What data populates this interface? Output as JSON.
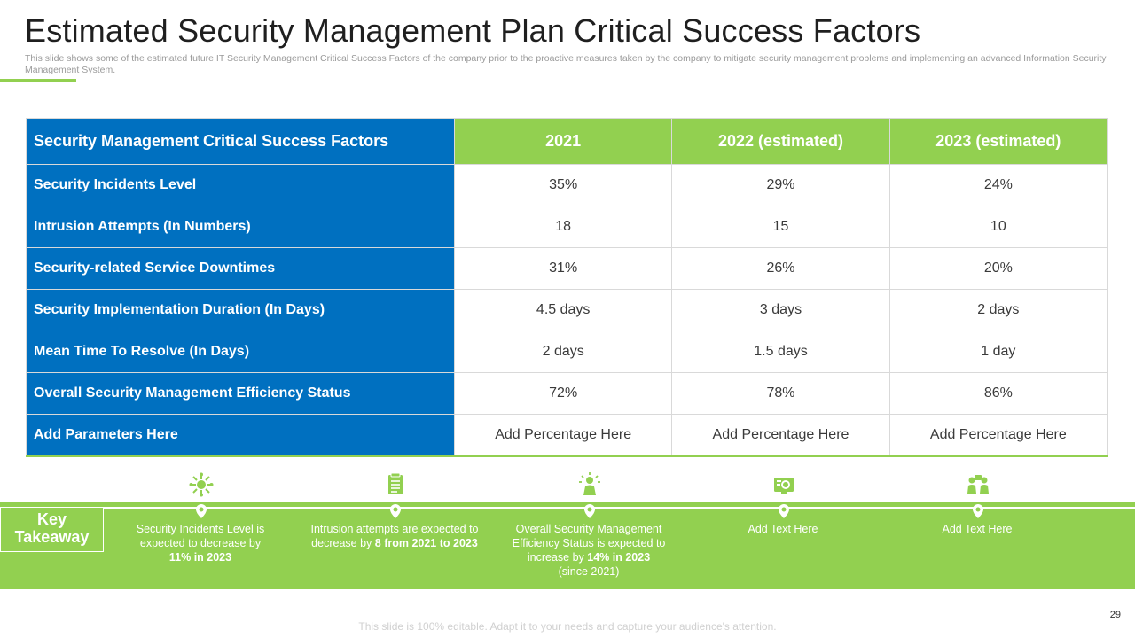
{
  "slide": {
    "title": "Estimated Security Management Plan Critical Success Factors",
    "subtitle": "This slide shows some of the estimated future IT Security Management Critical Success Factors of the company prior to the proactive measures taken by the company to mitigate security management problems and implementing an advanced Information Security Management System.",
    "footer": "This slide is 100% editable. Adapt it to your needs and capture your audience's attention.",
    "page_number": "29"
  },
  "colors": {
    "blue": "#0070c0",
    "green": "#92d050"
  },
  "table": {
    "headers": [
      "Security Management Critical Success Factors",
      "2021",
      "2022 (estimated)",
      "2023 (estimated)"
    ],
    "rows": [
      {
        "factor": "Security Incidents Level",
        "v2021": "35%",
        "v2022": "29%",
        "v2023": "24%"
      },
      {
        "factor": "Intrusion Attempts (In Numbers)",
        "v2021": "18",
        "v2022": "15",
        "v2023": "10"
      },
      {
        "factor": "Security-related Service Downtimes",
        "v2021": "31%",
        "v2022": "26%",
        "v2023": "20%"
      },
      {
        "factor": "Security Implementation Duration (In Days)",
        "v2021": "4.5 days",
        "v2022": "3 days",
        "v2023": "2 days"
      },
      {
        "factor": "Mean Time To Resolve (In Days)",
        "v2021": "2 days",
        "v2022": "1.5 days",
        "v2023": "1 day"
      },
      {
        "factor": "Overall Security Management Efficiency Status",
        "v2021": "72%",
        "v2022": "78%",
        "v2023": "86%"
      },
      {
        "factor": "Add Parameters Here",
        "v2021": "Add Percentage Here",
        "v2022": "Add Percentage Here",
        "v2023": "Add Percentage Here"
      }
    ]
  },
  "takeaway": {
    "label": "Key Takeaway",
    "items": [
      {
        "icon": "virus-network-icon",
        "text": "Security Incidents Level  is expected to decrease by",
        "bold": "11%  in 2023",
        "tail": ""
      },
      {
        "icon": "document-list-icon",
        "text": "Intrusion attempts are expected to decrease by",
        "bold": "8 from 2021 to 2023",
        "tail": ""
      },
      {
        "icon": "person-idea-icon",
        "text": "Overall  Security Management Efficiency Status is expected to increase by",
        "bold": "14%  in 2023",
        "tail": "(since 2021)"
      },
      {
        "icon": "monitor-gear-icon",
        "text": "Add Text Here",
        "bold": "",
        "tail": ""
      },
      {
        "icon": "team-meeting-icon",
        "text": "Add Text Here",
        "bold": "",
        "tail": ""
      }
    ]
  }
}
